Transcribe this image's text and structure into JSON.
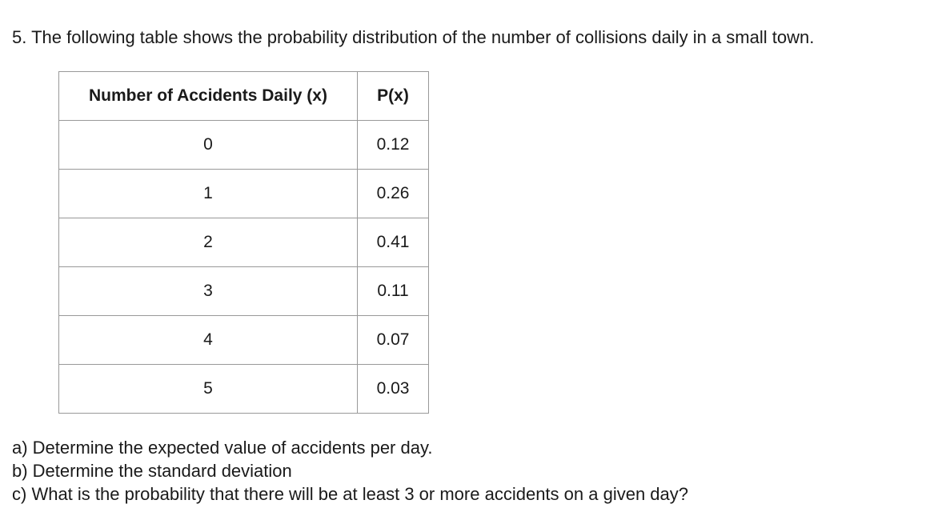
{
  "question": {
    "text": "5. The following table shows the probability distribution of the number of collisions daily in a small town."
  },
  "table": {
    "headers": {
      "x": "Number of Accidents Daily (x)",
      "p": "P(x)"
    },
    "rows": [
      {
        "x": "0",
        "p": "0.12"
      },
      {
        "x": "1",
        "p": "0.26"
      },
      {
        "x": "2",
        "p": "0.41"
      },
      {
        "x": "3",
        "p": "0.11"
      },
      {
        "x": "4",
        "p": "0.07"
      },
      {
        "x": "5",
        "p": "0.03"
      }
    ]
  },
  "parts": [
    "a) Determine the expected value of accidents per day.",
    "b) Determine the standard deviation",
    "c) What is the probability that there will be at least 3 or more accidents on a given day?"
  ]
}
